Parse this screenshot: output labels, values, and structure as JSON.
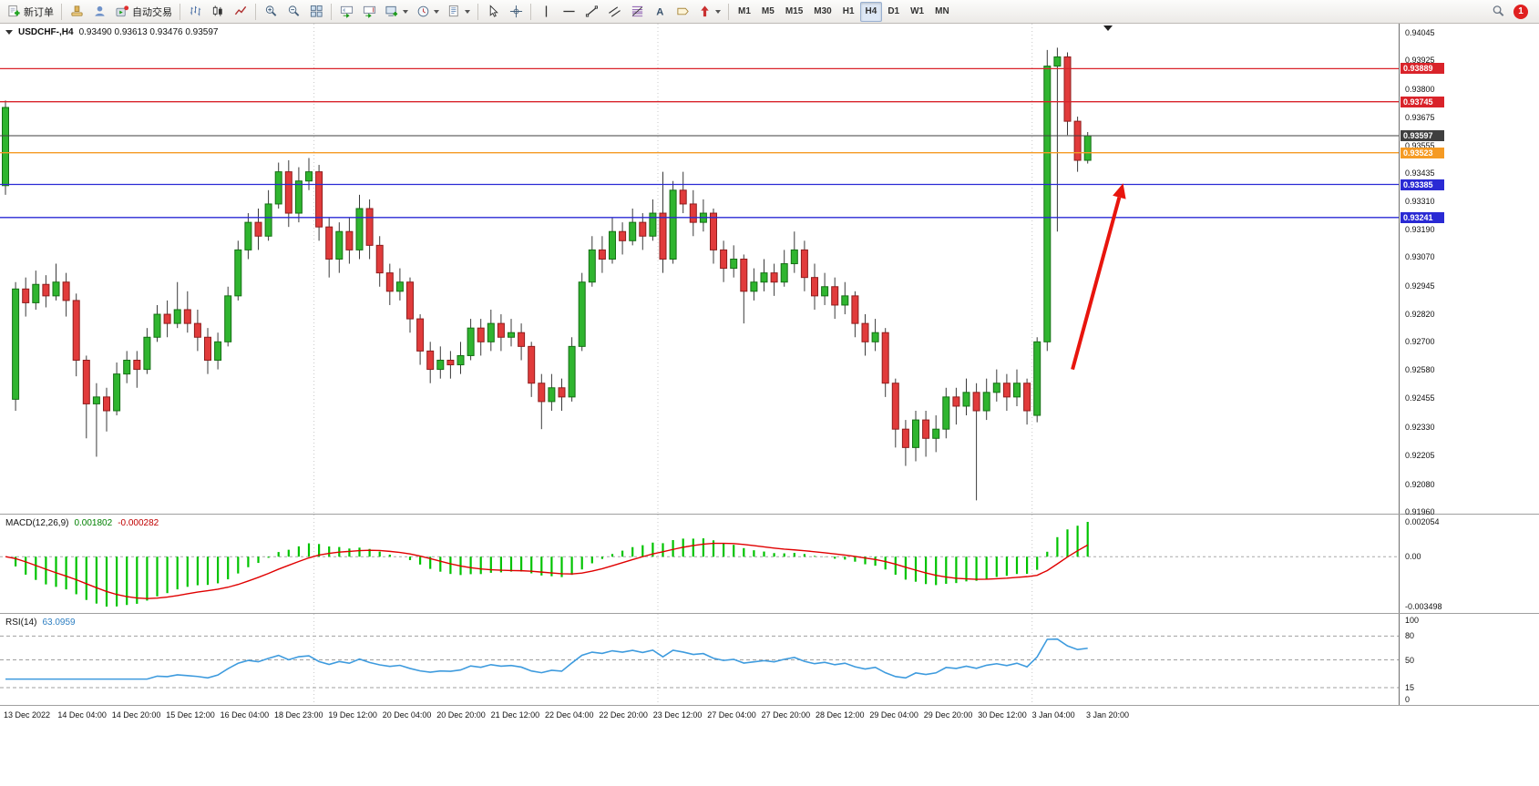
{
  "window": {
    "symbol_title": "USDCHF-,H4",
    "ohlc": "0.93490 0.93613 0.93476 0.93597"
  },
  "toolbar": {
    "new_order_label": "新订单",
    "autotrading_label": "自动交易",
    "text_tool_glyph": "A",
    "notification_count": "1",
    "timeframes": [
      {
        "label": "M1"
      },
      {
        "label": "M5"
      },
      {
        "label": "M15"
      },
      {
        "label": "M30"
      },
      {
        "label": "H1"
      },
      {
        "label": "H4",
        "active": true
      },
      {
        "label": "D1"
      },
      {
        "label": "W1"
      },
      {
        "label": "MN"
      }
    ]
  },
  "chart_data": {
    "type": "candlestick",
    "symbol": "USDCHF",
    "timeframe": "H4",
    "price_axis": {
      "min": 0.9196,
      "max": 0.94045,
      "ticks": [
        "0.94045",
        "0.93925",
        "0.93800",
        "0.93675",
        "0.93555",
        "0.93435",
        "0.93310",
        "0.93190",
        "0.93070",
        "0.92945",
        "0.92820",
        "0.92700",
        "0.92580",
        "0.92455",
        "0.92330",
        "0.92205",
        "0.92080",
        "0.91960"
      ]
    },
    "time_axis": [
      "13 Dec 2022",
      "14 Dec 04:00",
      "14 Dec 20:00",
      "15 Dec 12:00",
      "16 Dec 04:00",
      "18 Dec 23:00",
      "19 Dec 12:00",
      "20 Dec 04:00",
      "20 Dec 20:00",
      "21 Dec 12:00",
      "22 Dec 04:00",
      "22 Dec 20:00",
      "23 Dec 12:00",
      "27 Dec 04:00",
      "27 Dec 20:00",
      "28 Dec 12:00",
      "29 Dec 04:00",
      "29 Dec 20:00",
      "30 Dec 12:00",
      "3 Jan 04:00",
      "3 Jan 20:00"
    ],
    "colors": {
      "up_fill": "#2FB52F",
      "up_stroke": "#156f15",
      "down_fill": "#E13B3B",
      "down_stroke": "#8f1d1d",
      "wick": "#3a3a3a",
      "period_separator": "#c8c8c8"
    },
    "hlines": [
      {
        "price": 0.93889,
        "label": "0.93889",
        "color": "#D9232A",
        "role": "resistance"
      },
      {
        "price": 0.93745,
        "label": "0.93745",
        "color": "#D9232A",
        "role": "resistance"
      },
      {
        "price": 0.93597,
        "label": "0.93597",
        "color": "#3F3F3F",
        "role": "current-price"
      },
      {
        "price": 0.93523,
        "label": "0.93523",
        "color": "#F59A23",
        "role": "level"
      },
      {
        "price": 0.93385,
        "label": "0.93385",
        "color": "#2A2AD4",
        "role": "support"
      },
      {
        "price": 0.93241,
        "label": "0.93241",
        "color": "#2A2AD4",
        "role": "support"
      }
    ],
    "separators_bar_index": [
      31,
      65,
      102
    ],
    "annotation_arrow": {
      "from": {
        "bar": 105.5,
        "price": 0.9258
      },
      "to": {
        "bar": 110.5,
        "price": 0.9339
      },
      "color": "#E8150D"
    },
    "indicators": {
      "macd": {
        "label": "MACD(12,26,9)",
        "value_main": "0.001802",
        "value_signal": "-0.000282",
        "params": [
          12,
          26,
          9
        ],
        "axis_labels": {
          "max": "0.002054",
          "zero": "0.00",
          "min": "-0.003498"
        },
        "hist_color": "#00C300",
        "signal_color": "#E00000"
      },
      "rsi": {
        "label": "RSI(14)",
        "value": "63.0959",
        "period": 14,
        "levels": [
          {
            "value": 100,
            "label": "100",
            "line": false
          },
          {
            "value": 80,
            "label": "80",
            "line": true
          },
          {
            "value": 50,
            "label": "50",
            "line": true
          },
          {
            "value": 15,
            "label": "15",
            "line": true
          },
          {
            "value": 0,
            "label": "0",
            "line": false
          }
        ],
        "color": "#3E9BDE"
      }
    },
    "candles": [
      [
        0.9338,
        0.9375,
        0.9334,
        0.9372
      ],
      [
        0.9245,
        0.9296,
        0.924,
        0.9293
      ],
      [
        0.9293,
        0.9298,
        0.9281,
        0.9287
      ],
      [
        0.9287,
        0.9301,
        0.9284,
        0.9295
      ],
      [
        0.9295,
        0.9299,
        0.9285,
        0.929
      ],
      [
        0.929,
        0.9304,
        0.9288,
        0.9296
      ],
      [
        0.9296,
        0.93,
        0.9281,
        0.9288
      ],
      [
        0.9288,
        0.9291,
        0.9255,
        0.9262
      ],
      [
        0.9262,
        0.9264,
        0.9228,
        0.9243
      ],
      [
        0.9243,
        0.9252,
        0.922,
        0.9246
      ],
      [
        0.9246,
        0.925,
        0.9231,
        0.924
      ],
      [
        0.924,
        0.9261,
        0.9238,
        0.9256
      ],
      [
        0.9256,
        0.9266,
        0.9252,
        0.9262
      ],
      [
        0.9262,
        0.9266,
        0.925,
        0.9258
      ],
      [
        0.9258,
        0.9276,
        0.9256,
        0.9272
      ],
      [
        0.9272,
        0.9286,
        0.927,
        0.9282
      ],
      [
        0.9282,
        0.9288,
        0.9272,
        0.9278
      ],
      [
        0.9278,
        0.9296,
        0.9276,
        0.9284
      ],
      [
        0.9284,
        0.9292,
        0.9274,
        0.9278
      ],
      [
        0.9278,
        0.9284,
        0.9266,
        0.9272
      ],
      [
        0.9272,
        0.9276,
        0.9256,
        0.9262
      ],
      [
        0.9262,
        0.9274,
        0.9258,
        0.927
      ],
      [
        0.927,
        0.9294,
        0.9268,
        0.929
      ],
      [
        0.929,
        0.9314,
        0.9288,
        0.931
      ],
      [
        0.931,
        0.9326,
        0.9306,
        0.9322
      ],
      [
        0.9322,
        0.9328,
        0.931,
        0.9316
      ],
      [
        0.9316,
        0.9336,
        0.9314,
        0.933
      ],
      [
        0.933,
        0.9348,
        0.9328,
        0.9344
      ],
      [
        0.9344,
        0.9349,
        0.932,
        0.9326
      ],
      [
        0.9326,
        0.9346,
        0.9322,
        0.934
      ],
      [
        0.934,
        0.935,
        0.9336,
        0.9344
      ],
      [
        0.9344,
        0.9347,
        0.9314,
        0.932
      ],
      [
        0.932,
        0.9324,
        0.9298,
        0.9306
      ],
      [
        0.9306,
        0.9322,
        0.93,
        0.9318
      ],
      [
        0.9318,
        0.9324,
        0.9304,
        0.931
      ],
      [
        0.931,
        0.9334,
        0.9306,
        0.9328
      ],
      [
        0.9328,
        0.9332,
        0.9306,
        0.9312
      ],
      [
        0.9312,
        0.9316,
        0.9294,
        0.93
      ],
      [
        0.93,
        0.9304,
        0.9286,
        0.9292
      ],
      [
        0.9292,
        0.9302,
        0.9288,
        0.9296
      ],
      [
        0.9296,
        0.9298,
        0.9274,
        0.928
      ],
      [
        0.928,
        0.9282,
        0.926,
        0.9266
      ],
      [
        0.9266,
        0.927,
        0.9252,
        0.9258
      ],
      [
        0.9258,
        0.9268,
        0.9254,
        0.9262
      ],
      [
        0.9262,
        0.9266,
        0.9254,
        0.926
      ],
      [
        0.926,
        0.927,
        0.9256,
        0.9264
      ],
      [
        0.9264,
        0.928,
        0.9262,
        0.9276
      ],
      [
        0.9276,
        0.928,
        0.9264,
        0.927
      ],
      [
        0.927,
        0.9284,
        0.9266,
        0.9278
      ],
      [
        0.9278,
        0.9282,
        0.9266,
        0.9272
      ],
      [
        0.9272,
        0.928,
        0.9268,
        0.9274
      ],
      [
        0.9274,
        0.9278,
        0.9262,
        0.9268
      ],
      [
        0.9268,
        0.927,
        0.9246,
        0.9252
      ],
      [
        0.9252,
        0.9256,
        0.9232,
        0.9244
      ],
      [
        0.9244,
        0.9256,
        0.924,
        0.925
      ],
      [
        0.925,
        0.9254,
        0.924,
        0.9246
      ],
      [
        0.9246,
        0.9272,
        0.9244,
        0.9268
      ],
      [
        0.9268,
        0.93,
        0.9266,
        0.9296
      ],
      [
        0.9296,
        0.9316,
        0.9294,
        0.931
      ],
      [
        0.931,
        0.9316,
        0.93,
        0.9306
      ],
      [
        0.9306,
        0.9324,
        0.9304,
        0.9318
      ],
      [
        0.9318,
        0.9322,
        0.9308,
        0.9314
      ],
      [
        0.9314,
        0.9328,
        0.9312,
        0.9322
      ],
      [
        0.9322,
        0.9326,
        0.931,
        0.9316
      ],
      [
        0.9316,
        0.9332,
        0.9314,
        0.9326
      ],
      [
        0.9326,
        0.9344,
        0.93,
        0.9306
      ],
      [
        0.9306,
        0.934,
        0.9304,
        0.9336
      ],
      [
        0.9336,
        0.9344,
        0.9326,
        0.933
      ],
      [
        0.933,
        0.9336,
        0.9316,
        0.9322
      ],
      [
        0.9322,
        0.9332,
        0.9318,
        0.9326
      ],
      [
        0.9326,
        0.9328,
        0.9304,
        0.931
      ],
      [
        0.931,
        0.9314,
        0.9296,
        0.9302
      ],
      [
        0.9302,
        0.9312,
        0.9298,
        0.9306
      ],
      [
        0.9306,
        0.9308,
        0.9278,
        0.9292
      ],
      [
        0.9292,
        0.9302,
        0.9288,
        0.9296
      ],
      [
        0.9296,
        0.9306,
        0.9292,
        0.93
      ],
      [
        0.93,
        0.9304,
        0.929,
        0.9296
      ],
      [
        0.9296,
        0.931,
        0.9294,
        0.9304
      ],
      [
        0.9304,
        0.9318,
        0.93,
        0.931
      ],
      [
        0.931,
        0.9314,
        0.9292,
        0.9298
      ],
      [
        0.9298,
        0.9304,
        0.9284,
        0.929
      ],
      [
        0.929,
        0.93,
        0.9286,
        0.9294
      ],
      [
        0.9294,
        0.9298,
        0.928,
        0.9286
      ],
      [
        0.9286,
        0.9296,
        0.9282,
        0.929
      ],
      [
        0.929,
        0.9292,
        0.9272,
        0.9278
      ],
      [
        0.9278,
        0.9282,
        0.9264,
        0.927
      ],
      [
        0.927,
        0.928,
        0.9266,
        0.9274
      ],
      [
        0.9274,
        0.9276,
        0.9246,
        0.9252
      ],
      [
        0.9252,
        0.9254,
        0.9224,
        0.9232
      ],
      [
        0.9232,
        0.9236,
        0.9216,
        0.9224
      ],
      [
        0.9224,
        0.924,
        0.9218,
        0.9236
      ],
      [
        0.9236,
        0.924,
        0.922,
        0.9228
      ],
      [
        0.9228,
        0.9238,
        0.9222,
        0.9232
      ],
      [
        0.9232,
        0.925,
        0.9228,
        0.9246
      ],
      [
        0.9246,
        0.925,
        0.9234,
        0.9242
      ],
      [
        0.9242,
        0.9254,
        0.9238,
        0.9248
      ],
      [
        0.9248,
        0.9252,
        0.9201,
        0.924
      ],
      [
        0.924,
        0.9254,
        0.9236,
        0.9248
      ],
      [
        0.9248,
        0.9258,
        0.9244,
        0.9252
      ],
      [
        0.9252,
        0.9256,
        0.924,
        0.9246
      ],
      [
        0.9246,
        0.9258,
        0.9242,
        0.9252
      ],
      [
        0.9252,
        0.9254,
        0.9234,
        0.924
      ],
      [
        0.9238,
        0.9272,
        0.9235,
        0.927
      ],
      [
        0.927,
        0.9397,
        0.9266,
        0.939
      ],
      [
        0.939,
        0.9398,
        0.9318,
        0.9394
      ],
      [
        0.9394,
        0.9396,
        0.936,
        0.9366
      ],
      [
        0.9366,
        0.9368,
        0.9344,
        0.9349
      ],
      [
        0.9349,
        0.93613,
        0.93476,
        0.93597
      ]
    ]
  }
}
